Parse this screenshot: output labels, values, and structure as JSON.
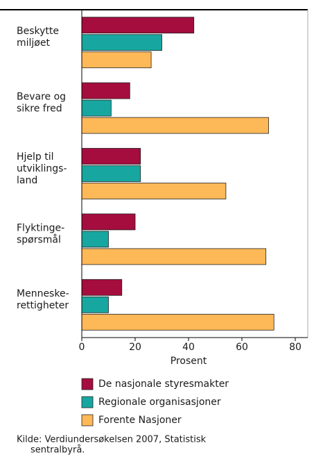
{
  "chart_data": {
    "type": "hbar",
    "categories": [
      [
        "Beskytte",
        "miljøet"
      ],
      [
        "Bevare og",
        "sikre fred"
      ],
      [
        "Hjelp til",
        "utviklings-",
        "land"
      ],
      [
        "Flyktinge-",
        "spørsmål"
      ],
      [
        "Menneske-",
        "rettigheter"
      ]
    ],
    "series": [
      {
        "name": "De nasjonale styresmakter",
        "color": "#a50d3f",
        "values": [
          42,
          18,
          22,
          20,
          15
        ]
      },
      {
        "name": "Regionale organisasjoner",
        "color": "#17a7a0",
        "values": [
          30,
          11,
          22,
          10,
          10
        ]
      },
      {
        "name": "Forente Nasjoner",
        "color": "#fdb857",
        "values": [
          26,
          70,
          54,
          69,
          72
        ]
      }
    ],
    "xlabel": "Prosent",
    "xlim": [
      0,
      80
    ],
    "xticks": [
      0,
      20,
      40,
      60,
      80
    ],
    "source": [
      "Kilde: Verdiundersøkelsen 2007, Statistisk",
      "sentralbyrå."
    ]
  }
}
